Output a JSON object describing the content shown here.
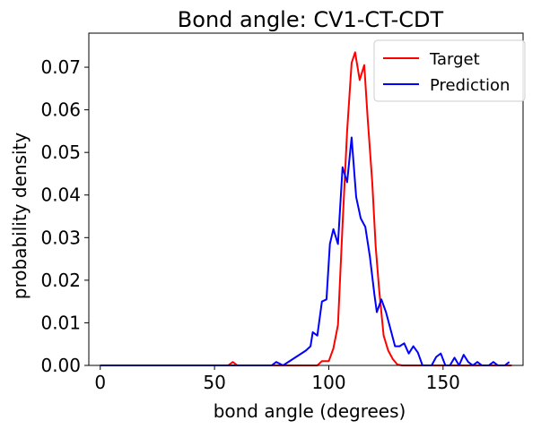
{
  "chart_data": {
    "type": "line",
    "title": "Bond angle: CV1-CT-CDT",
    "xlabel": "bond angle (degrees)",
    "ylabel": "probability density",
    "xlim": [
      -5,
      185
    ],
    "ylim": [
      0,
      0.078
    ],
    "xticks": [
      0,
      50,
      100,
      150
    ],
    "yticks": [
      0.0,
      0.01,
      0.02,
      0.03,
      0.04,
      0.05,
      0.06,
      0.07
    ],
    "xtick_labels": [
      "0",
      "50",
      "100",
      "150"
    ],
    "ytick_labels": [
      "0.00",
      "0.01",
      "0.02",
      "0.03",
      "0.04",
      "0.05",
      "0.06",
      "0.07"
    ],
    "grid": false,
    "legend_position": "top-right",
    "series": [
      {
        "name": "Target",
        "color": "#ff0000",
        "points": [
          [
            0,
            0
          ],
          [
            56,
            0
          ],
          [
            58,
            0.0008
          ],
          [
            60,
            0
          ],
          [
            95,
            0
          ],
          [
            97,
            0.001
          ],
          [
            100,
            0.001
          ],
          [
            102,
            0.004
          ],
          [
            104,
            0.0095
          ],
          [
            106,
            0.033
          ],
          [
            108,
            0.055
          ],
          [
            110,
            0.071
          ],
          [
            111.5,
            0.0735
          ],
          [
            113.5,
            0.067
          ],
          [
            115.5,
            0.0705
          ],
          [
            117,
            0.058
          ],
          [
            119,
            0.043
          ],
          [
            120.5,
            0.028
          ],
          [
            122,
            0.018
          ],
          [
            124,
            0.007
          ],
          [
            126,
            0.0035
          ],
          [
            128,
            0.0015
          ],
          [
            130,
            0.0002
          ],
          [
            132,
            0
          ],
          [
            180,
            0
          ]
        ]
      },
      {
        "name": "Prediction",
        "color": "#0000ff",
        "points": [
          [
            0,
            0
          ],
          [
            75,
            0
          ],
          [
            77,
            0.0008
          ],
          [
            80,
            0
          ],
          [
            90,
            0.0035
          ],
          [
            92,
            0.0045
          ],
          [
            93,
            0.0078
          ],
          [
            95,
            0.007
          ],
          [
            97,
            0.015
          ],
          [
            99,
            0.0155
          ],
          [
            100.5,
            0.0285
          ],
          [
            102,
            0.032
          ],
          [
            104,
            0.0285
          ],
          [
            106,
            0.0465
          ],
          [
            108,
            0.043
          ],
          [
            110,
            0.0535
          ],
          [
            112,
            0.0395
          ],
          [
            114,
            0.0345
          ],
          [
            116,
            0.0325
          ],
          [
            118,
            0.0255
          ],
          [
            120,
            0.0165
          ],
          [
            121,
            0.0125
          ],
          [
            123,
            0.0155
          ],
          [
            125,
            0.0125
          ],
          [
            127,
            0.0085
          ],
          [
            129,
            0.0045
          ],
          [
            131,
            0.0045
          ],
          [
            133,
            0.0052
          ],
          [
            135,
            0.0028
          ],
          [
            137,
            0.0045
          ],
          [
            139,
            0.003
          ],
          [
            141,
            0
          ],
          [
            145,
            0
          ],
          [
            147,
            0.002
          ],
          [
            149,
            0.0028
          ],
          [
            151,
            0
          ],
          [
            153,
            0
          ],
          [
            155,
            0.0018
          ],
          [
            157,
            0
          ],
          [
            159,
            0.0025
          ],
          [
            161,
            0.0008
          ],
          [
            163,
            0
          ],
          [
            165,
            0.0008
          ],
          [
            167,
            0
          ],
          [
            170,
            0
          ],
          [
            172,
            0.0008
          ],
          [
            174,
            0
          ],
          [
            177,
            0
          ],
          [
            179,
            0.0008
          ]
        ]
      }
    ]
  }
}
